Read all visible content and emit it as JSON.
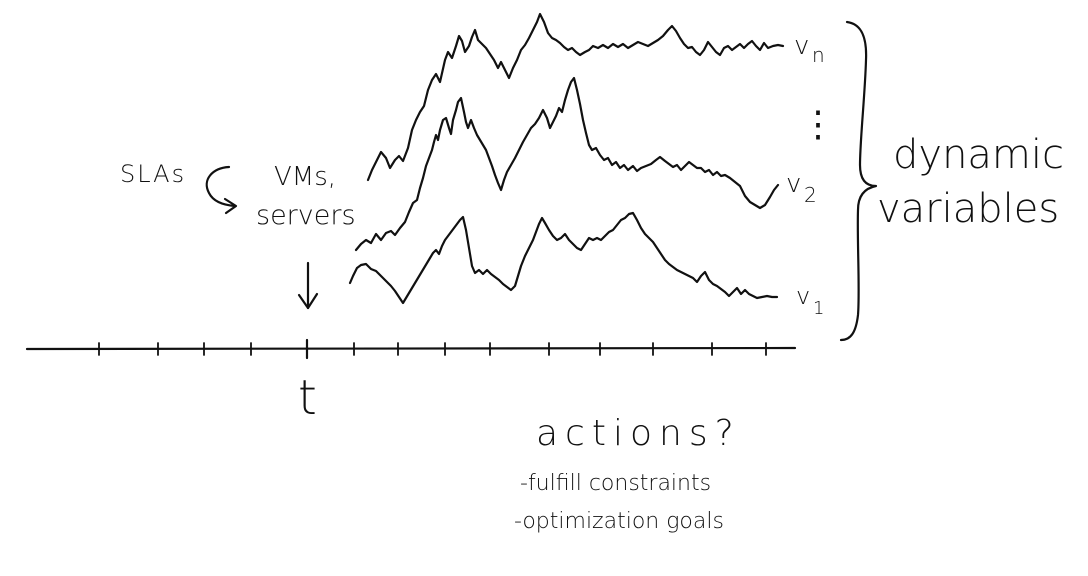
{
  "labels": {
    "slas": "SLAs",
    "vms_line1": "VMs,",
    "vms_line2": "servers",
    "time": "t",
    "series_top": "v",
    "series_top_sub": "n",
    "series_mid": "v",
    "series_mid_sub": "2",
    "series_bot": "v",
    "series_bot_sub": "1",
    "ellipsis": "⋮",
    "group_line1": "dynamic",
    "group_line2": "variables",
    "actions": "actions?",
    "bullet_1": "-fulfill constraints",
    "bullet_2": "-optimization goals"
  }
}
